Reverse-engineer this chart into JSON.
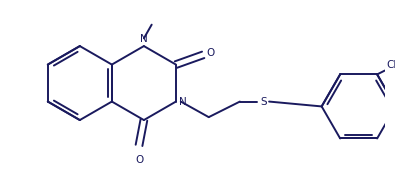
{
  "bg_color": "#ffffff",
  "line_color": "#1a1a5e",
  "line_width": 1.4,
  "font_size": 7.5,
  "font_color": "#1a1a5e",
  "figsize": [
    3.95,
    1.71
  ],
  "dpi": 100,
  "xlim": [
    0,
    395
  ],
  "ylim": [
    0,
    171
  ]
}
